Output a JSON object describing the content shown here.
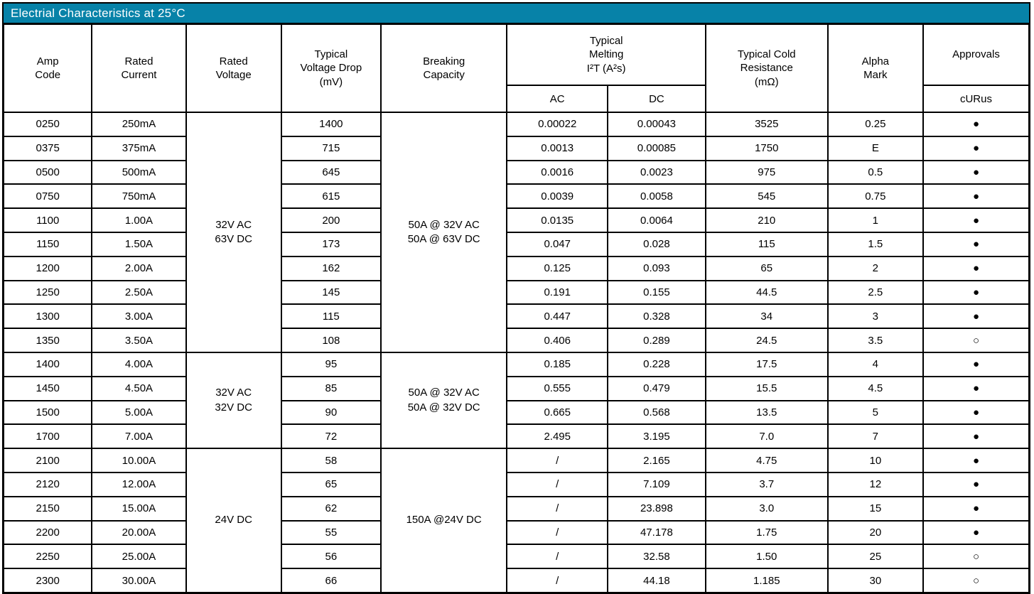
{
  "title": "Electrial Characteristics at 25°C",
  "colors": {
    "title_bg": "#0782A8",
    "title_text": "#ffffff",
    "border": "#000000",
    "table_bg": "#ffffff",
    "cell_text": "#000000"
  },
  "header": {
    "amp_code": "Amp\nCode",
    "rated_current": "Rated\nCurrent",
    "rated_voltage": "Rated\nVoltage",
    "voltage_drop": "Typical\nVoltage Drop\n(mV)",
    "breaking_capacity": "Breaking\nCapacity",
    "melting": "Typical\nMelting\nI²T (A²s)",
    "melting_ac": "AC",
    "melting_dc": "DC",
    "cold_resistance": "Typical Cold\nResistance\n(mΩ)",
    "alpha_mark": "Alpha\nMark",
    "approvals": "Approvals",
    "approvals_agency": "cURus"
  },
  "legend": {
    "approved_glyph": "●",
    "pending_glyph": "○"
  },
  "table": {
    "groups": [
      {
        "rated_voltage": "32V AC\n63V DC",
        "breaking_capacity": "50A @ 32V AC\n50A @ 63V DC",
        "rows": [
          {
            "amp_code": "0250",
            "rated_current": "250mA",
            "voltage_drop": "1400",
            "melting_ac": "0.00022",
            "melting_dc": "0.00043",
            "cold_resistance": "3525",
            "alpha_mark": "0.25",
            "approval": "●"
          },
          {
            "amp_code": "0375",
            "rated_current": "375mA",
            "voltage_drop": "715",
            "melting_ac": "0.0013",
            "melting_dc": "0.00085",
            "cold_resistance": "1750",
            "alpha_mark": "E",
            "approval": "●"
          },
          {
            "amp_code": "0500",
            "rated_current": "500mA",
            "voltage_drop": "645",
            "melting_ac": "0.0016",
            "melting_dc": "0.0023",
            "cold_resistance": "975",
            "alpha_mark": "0.5",
            "approval": "●"
          },
          {
            "amp_code": "0750",
            "rated_current": "750mA",
            "voltage_drop": "615",
            "melting_ac": "0.0039",
            "melting_dc": "0.0058",
            "cold_resistance": "545",
            "alpha_mark": "0.75",
            "approval": "●"
          },
          {
            "amp_code": "1100",
            "rated_current": "1.00A",
            "voltage_drop": "200",
            "melting_ac": "0.0135",
            "melting_dc": "0.0064",
            "cold_resistance": "210",
            "alpha_mark": "1",
            "approval": "●"
          },
          {
            "amp_code": "1150",
            "rated_current": "1.50A",
            "voltage_drop": "173",
            "melting_ac": "0.047",
            "melting_dc": "0.028",
            "cold_resistance": "115",
            "alpha_mark": "1.5",
            "approval": "●"
          },
          {
            "amp_code": "1200",
            "rated_current": "2.00A",
            "voltage_drop": "162",
            "melting_ac": "0.125",
            "melting_dc": "0.093",
            "cold_resistance": "65",
            "alpha_mark": "2",
            "approval": "●"
          },
          {
            "amp_code": "1250",
            "rated_current": "2.50A",
            "voltage_drop": "145",
            "melting_ac": "0.191",
            "melting_dc": "0.155",
            "cold_resistance": "44.5",
            "alpha_mark": "2.5",
            "approval": "●"
          },
          {
            "amp_code": "1300",
            "rated_current": "3.00A",
            "voltage_drop": "115",
            "melting_ac": "0.447",
            "melting_dc": "0.328",
            "cold_resistance": "34",
            "alpha_mark": "3",
            "approval": "●"
          },
          {
            "amp_code": "1350",
            "rated_current": "3.50A",
            "voltage_drop": "108",
            "melting_ac": "0.406",
            "melting_dc": "0.289",
            "cold_resistance": "24.5",
            "alpha_mark": "3.5",
            "approval": "○"
          }
        ]
      },
      {
        "rated_voltage": "32V AC\n32V DC",
        "breaking_capacity": "50A @ 32V AC\n50A @ 32V DC",
        "rows": [
          {
            "amp_code": "1400",
            "rated_current": "4.00A",
            "voltage_drop": "95",
            "melting_ac": "0.185",
            "melting_dc": "0.228",
            "cold_resistance": "17.5",
            "alpha_mark": "4",
            "approval": "●"
          },
          {
            "amp_code": "1450",
            "rated_current": "4.50A",
            "voltage_drop": "85",
            "melting_ac": "0.555",
            "melting_dc": "0.479",
            "cold_resistance": "15.5",
            "alpha_mark": "4.5",
            "approval": "●"
          },
          {
            "amp_code": "1500",
            "rated_current": "5.00A",
            "voltage_drop": "90",
            "melting_ac": "0.665",
            "melting_dc": "0.568",
            "cold_resistance": "13.5",
            "alpha_mark": "5",
            "approval": "●"
          },
          {
            "amp_code": "1700",
            "rated_current": "7.00A",
            "voltage_drop": "72",
            "melting_ac": "2.495",
            "melting_dc": "3.195",
            "cold_resistance": "7.0",
            "alpha_mark": "7",
            "approval": "●"
          }
        ]
      },
      {
        "rated_voltage": "24V DC",
        "breaking_capacity": "150A @24V DC",
        "rows": [
          {
            "amp_code": "2100",
            "rated_current": "10.00A",
            "voltage_drop": "58",
            "melting_ac": "/",
            "melting_dc": "2.165",
            "cold_resistance": "4.75",
            "alpha_mark": "10",
            "approval": "●"
          },
          {
            "amp_code": "2120",
            "rated_current": "12.00A",
            "voltage_drop": "65",
            "melting_ac": "/",
            "melting_dc": "7.109",
            "cold_resistance": "3.7",
            "alpha_mark": "12",
            "approval": "●"
          },
          {
            "amp_code": "2150",
            "rated_current": "15.00A",
            "voltage_drop": "62",
            "melting_ac": "/",
            "melting_dc": "23.898",
            "cold_resistance": "3.0",
            "alpha_mark": "15",
            "approval": "●"
          },
          {
            "amp_code": "2200",
            "rated_current": "20.00A",
            "voltage_drop": "55",
            "melting_ac": "/",
            "melting_dc": "47.178",
            "cold_resistance": "1.75",
            "alpha_mark": "20",
            "approval": "●"
          },
          {
            "amp_code": "2250",
            "rated_current": "25.00A",
            "voltage_drop": "56",
            "melting_ac": "/",
            "melting_dc": "32.58",
            "cold_resistance": "1.50",
            "alpha_mark": "25",
            "approval": "○"
          },
          {
            "amp_code": "2300",
            "rated_current": "30.00A",
            "voltage_drop": "66",
            "melting_ac": "/",
            "melting_dc": "44.18",
            "cold_resistance": "1.185",
            "alpha_mark": "30",
            "approval": "○"
          }
        ]
      }
    ]
  }
}
